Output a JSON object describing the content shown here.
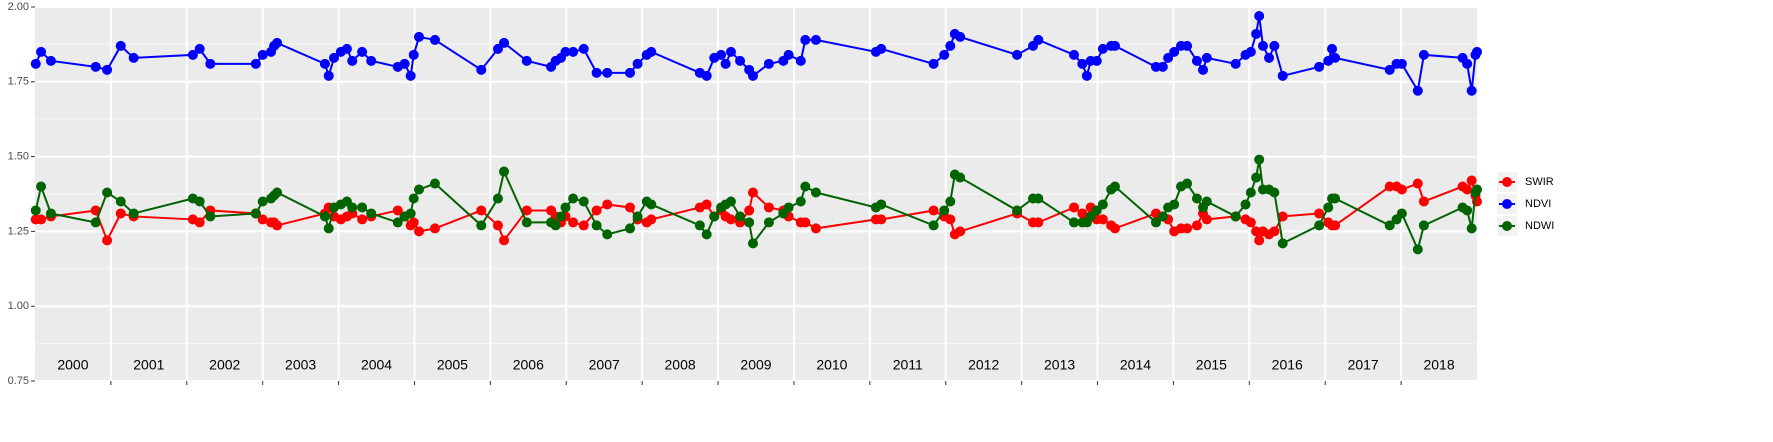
{
  "chart_data": {
    "type": "line",
    "x": [
      2000.01,
      2000.08,
      2000.21,
      2000.8,
      2000.95,
      2001.13,
      2001.3,
      2002.08,
      2002.17,
      2002.31,
      2002.91,
      2003.0,
      2003.11,
      2003.15,
      2003.19,
      2003.82,
      2003.87,
      2003.94,
      2004.03,
      2004.11,
      2004.18,
      2004.31,
      2004.43,
      2004.78,
      2004.87,
      2004.95,
      2004.99,
      2005.06,
      2005.27,
      2005.88,
      2006.1,
      2006.18,
      2006.48,
      2006.8,
      2006.86,
      2006.93,
      2006.99,
      2007.09,
      2007.23,
      2007.4,
      2007.54,
      2007.84,
      2007.94,
      2008.06,
      2008.12,
      2008.76,
      2008.85,
      2008.95,
      2009.04,
      2009.1,
      2009.17,
      2009.29,
      2009.41,
      2009.46,
      2009.67,
      2009.86,
      2009.93,
      2010.09,
      2010.15,
      2010.29,
      2011.08,
      2011.15,
      2011.84,
      2011.98,
      2012.06,
      2012.12,
      2012.19,
      2012.94,
      2013.15,
      2013.22,
      2013.69,
      2013.8,
      2013.86,
      2013.91,
      2013.99,
      2014.07,
      2014.18,
      2014.23,
      2014.77,
      2014.86,
      2014.93,
      2015.01,
      2015.1,
      2015.18,
      2015.31,
      2015.39,
      2015.44,
      2015.82,
      2015.95,
      2016.02,
      2016.09,
      2016.13,
      2016.18,
      2016.26,
      2016.33,
      2016.44,
      2016.92,
      2017.04,
      2017.09,
      2017.13,
      2017.85,
      2017.94,
      2018.01,
      2018.22,
      2018.3,
      2018.81,
      2018.87,
      2018.93,
      2018.98,
      2019.0
    ],
    "series": [
      {
        "name": "SWIR",
        "color": "#ff0000",
        "values": [
          1.29,
          1.29,
          1.3,
          1.32,
          1.22,
          1.31,
          1.3,
          1.29,
          1.28,
          1.32,
          1.31,
          1.29,
          1.28,
          1.28,
          1.27,
          1.31,
          1.33,
          1.3,
          1.29,
          1.3,
          1.31,
          1.29,
          1.3,
          1.32,
          1.3,
          1.27,
          1.28,
          1.25,
          1.26,
          1.32,
          1.27,
          1.22,
          1.32,
          1.32,
          1.3,
          1.28,
          1.3,
          1.28,
          1.27,
          1.32,
          1.34,
          1.33,
          1.29,
          1.28,
          1.29,
          1.33,
          1.34,
          1.3,
          1.32,
          1.3,
          1.29,
          1.28,
          1.32,
          1.38,
          1.33,
          1.32,
          1.3,
          1.28,
          1.28,
          1.26,
          1.29,
          1.29,
          1.32,
          1.3,
          1.29,
          1.24,
          1.25,
          1.31,
          1.28,
          1.28,
          1.33,
          1.31,
          1.29,
          1.33,
          1.29,
          1.29,
          1.27,
          1.26,
          1.31,
          1.3,
          1.29,
          1.25,
          1.26,
          1.26,
          1.27,
          1.31,
          1.29,
          1.3,
          1.29,
          1.28,
          1.25,
          1.22,
          1.25,
          1.24,
          1.25,
          1.3,
          1.31,
          1.28,
          1.27,
          1.27,
          1.4,
          1.4,
          1.39,
          1.41,
          1.35,
          1.4,
          1.39,
          1.42,
          1.37,
          1.35
        ]
      },
      {
        "name": "NDVI",
        "color": "#0000ff",
        "values": [
          1.81,
          1.85,
          1.82,
          1.8,
          1.79,
          1.87,
          1.83,
          1.84,
          1.86,
          1.81,
          1.81,
          1.84,
          1.85,
          1.87,
          1.88,
          1.81,
          1.77,
          1.83,
          1.85,
          1.86,
          1.82,
          1.85,
          1.82,
          1.8,
          1.81,
          1.77,
          1.84,
          1.9,
          1.89,
          1.79,
          1.86,
          1.88,
          1.82,
          1.8,
          1.82,
          1.83,
          1.85,
          1.85,
          1.86,
          1.78,
          1.78,
          1.78,
          1.81,
          1.84,
          1.85,
          1.78,
          1.77,
          1.83,
          1.84,
          1.81,
          1.85,
          1.82,
          1.79,
          1.77,
          1.81,
          1.82,
          1.84,
          1.82,
          1.89,
          1.89,
          1.85,
          1.86,
          1.81,
          1.84,
          1.87,
          1.91,
          1.9,
          1.84,
          1.87,
          1.89,
          1.84,
          1.81,
          1.77,
          1.82,
          1.82,
          1.86,
          1.87,
          1.87,
          1.8,
          1.8,
          1.83,
          1.85,
          1.87,
          1.87,
          1.82,
          1.79,
          1.83,
          1.81,
          1.84,
          1.85,
          1.91,
          1.97,
          1.87,
          1.83,
          1.87,
          1.77,
          1.8,
          1.82,
          1.86,
          1.83,
          1.79,
          1.81,
          1.81,
          1.72,
          1.84,
          1.83,
          1.81,
          1.72,
          1.84,
          1.85
        ]
      },
      {
        "name": "NDWI",
        "color": "#006400",
        "values": [
          1.32,
          1.4,
          1.31,
          1.28,
          1.38,
          1.35,
          1.31,
          1.36,
          1.35,
          1.3,
          1.31,
          1.35,
          1.36,
          1.37,
          1.38,
          1.3,
          1.26,
          1.33,
          1.34,
          1.35,
          1.33,
          1.33,
          1.31,
          1.28,
          1.3,
          1.31,
          1.36,
          1.39,
          1.41,
          1.27,
          1.36,
          1.45,
          1.28,
          1.28,
          1.27,
          1.3,
          1.33,
          1.36,
          1.35,
          1.27,
          1.24,
          1.26,
          1.3,
          1.35,
          1.34,
          1.27,
          1.24,
          1.3,
          1.33,
          1.34,
          1.35,
          1.3,
          1.28,
          1.21,
          1.28,
          1.31,
          1.33,
          1.35,
          1.4,
          1.38,
          1.33,
          1.34,
          1.27,
          1.32,
          1.35,
          1.44,
          1.43,
          1.32,
          1.36,
          1.36,
          1.28,
          1.28,
          1.28,
          1.3,
          1.32,
          1.34,
          1.39,
          1.4,
          1.28,
          1.3,
          1.33,
          1.34,
          1.4,
          1.41,
          1.36,
          1.33,
          1.35,
          1.3,
          1.34,
          1.38,
          1.43,
          1.49,
          1.39,
          1.39,
          1.38,
          1.21,
          1.27,
          1.33,
          1.36,
          1.36,
          1.27,
          1.29,
          1.31,
          1.19,
          1.27,
          1.33,
          1.32,
          1.26,
          1.38,
          1.39
        ]
      }
    ],
    "xlim": [
      2000,
      2019
    ],
    "xticks": [
      2001,
      2002,
      2003,
      2004,
      2005,
      2006,
      2007,
      2008,
      2009,
      2010,
      2011,
      2012,
      2013,
      2014,
      2015,
      2016,
      2017,
      2018
    ],
    "year_labels": [
      "2000",
      "2001",
      "2002",
      "2003",
      "2004",
      "2005",
      "2006",
      "2007",
      "2008",
      "2009",
      "2010",
      "2011",
      "2012",
      "2013",
      "2014",
      "2015",
      "2016",
      "2017",
      "2018"
    ],
    "ylim": [
      0.75,
      2.0
    ],
    "yticks": [
      {
        "value": 0.75,
        "label": "0.75"
      },
      {
        "value": 1.0,
        "label": "1.00"
      },
      {
        "value": 1.25,
        "label": "1.25"
      },
      {
        "value": 1.5,
        "label": "1.50"
      },
      {
        "value": 1.75,
        "label": "1.75"
      },
      {
        "value": 2.0,
        "label": "2.00"
      }
    ],
    "grid": true,
    "legend": "right"
  }
}
